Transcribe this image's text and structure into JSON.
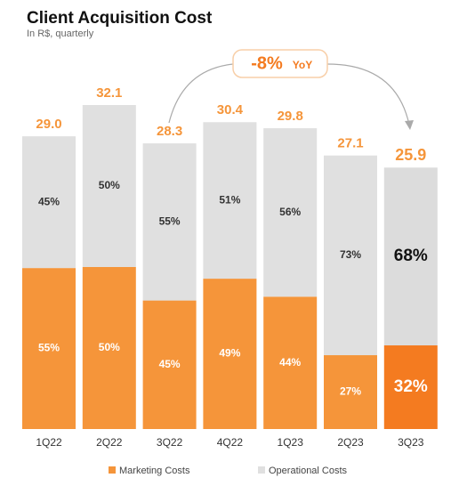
{
  "chart_data": {
    "type": "stacked_bar",
    "title": "Client Acquisition Cost",
    "subtitle": "In R$, quarterly",
    "annotation": {
      "text": "-8%",
      "unit": "YoY"
    },
    "categories": [
      "1Q22",
      "2Q22",
      "3Q22",
      "4Q22",
      "1Q23",
      "2Q23",
      "3Q23"
    ],
    "totals": {
      "values": [
        29.0,
        32.1,
        28.3,
        30.4,
        29.8,
        27.1,
        25.9
      ],
      "value_labels": [
        "29.0",
        "32.1",
        "28.3",
        "30.4",
        "29.8",
        "27.1",
        "25.9"
      ]
    },
    "series": [
      {
        "name": "Marketing Costs",
        "color": "#f5953a",
        "highlight_color": "#f47b20",
        "values": [
          55,
          50,
          45,
          49,
          44,
          27,
          32
        ],
        "value_labels": [
          "55%",
          "50%",
          "45%",
          "49%",
          "44%",
          "27%",
          "32%"
        ]
      },
      {
        "name": "Operational Costs",
        "color": "#e0e0e0",
        "highlight_color": "#dcdcdc",
        "values": [
          45,
          50,
          55,
          51,
          56,
          73,
          68
        ],
        "value_labels": [
          "45%",
          "50%",
          "55%",
          "51%",
          "56%",
          "73%",
          "68%"
        ]
      }
    ],
    "highlight": 6,
    "legend": "bottom"
  }
}
